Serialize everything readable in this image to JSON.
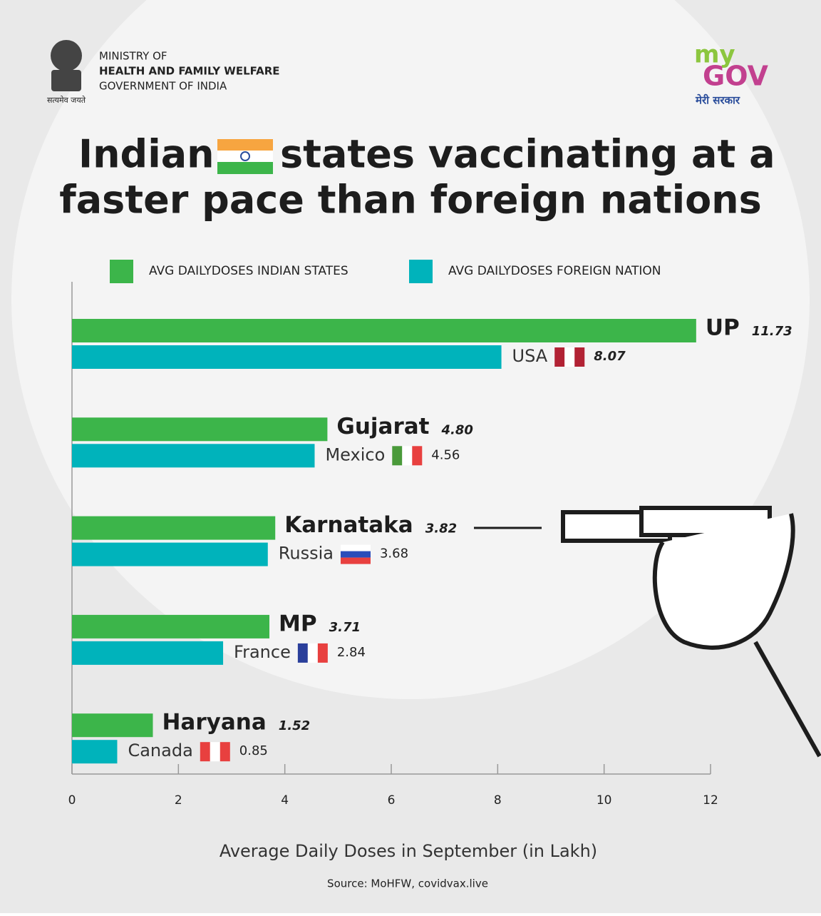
{
  "header": {
    "ministry": [
      "MINISTRY OF",
      "HEALTH AND FAMILY WELFARE",
      "GOVERNMENT OF INDIA"
    ],
    "motto": "सत्यमेव जयते",
    "logo": [
      "my",
      "GOV",
      "मेरी सरकार"
    ]
  },
  "chart_data": {
    "type": "grouped-hbar",
    "title": [
      "Indian",
      "states vaccinating at a",
      "faster pace than foreign nations"
    ],
    "series": [
      {
        "name": "AVG DAILYDOSES INDIAN STATES",
        "color": "#3cb54a",
        "labels": [
          "UP",
          "Gujarat",
          "Karnataka",
          "MP",
          "Haryana"
        ],
        "values": [
          11.73,
          4.8,
          3.82,
          3.71,
          1.52
        ],
        "value_labels": [
          "11.73",
          "4.80",
          "3.82",
          "3.71",
          "1.52"
        ]
      },
      {
        "name": "AVG DAILYDOSES FOREIGN NATION",
        "color": "#00b3bb",
        "labels": [
          "USA",
          "Mexico",
          "Russia",
          "France",
          "Canada"
        ],
        "values": [
          8.07,
          4.56,
          3.68,
          2.84,
          0.85
        ]
      }
    ],
    "xlim": [
      0,
      12
    ],
    "xticks": [
      0,
      2,
      4,
      6,
      8,
      10,
      12
    ],
    "xlabel": "Average Daily Doses in September (in Lakh)",
    "source": "Source: MoHFW, covidvax.live"
  }
}
